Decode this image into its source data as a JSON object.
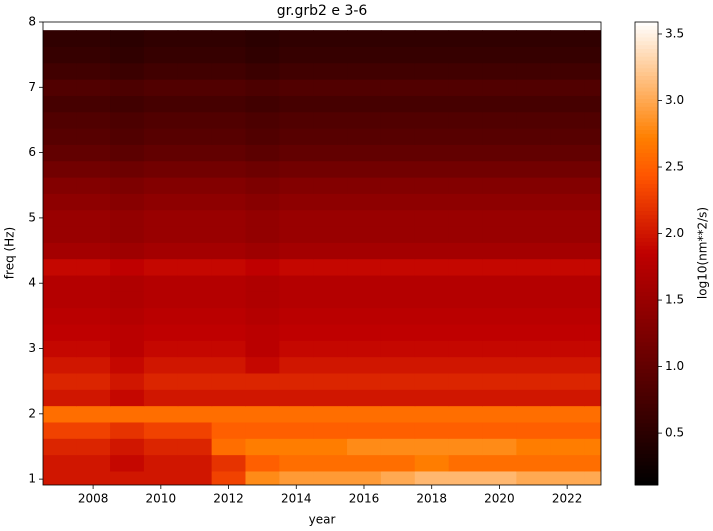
{
  "chart_data": {
    "type": "heatmap",
    "title": "gr.grb2 e 3-6",
    "x_label": "year",
    "y_label": "freq (Hz)",
    "colorbar_label": "log10(nm**2/s)",
    "colormap": "gist_heat",
    "x": [
      2007,
      2008,
      2009,
      2010,
      2011,
      2012,
      2013,
      2014,
      2015,
      2016,
      2017,
      2018,
      2019,
      2020,
      2021,
      2022,
      2023
    ],
    "y": [
      1.0,
      1.25,
      1.5,
      1.75,
      2.0,
      2.25,
      2.5,
      2.75,
      3.0,
      3.25,
      3.5,
      3.75,
      4.0,
      4.25,
      4.5,
      4.75,
      5.0,
      5.25,
      5.5,
      5.75,
      6.0,
      6.25,
      6.5,
      6.75,
      7.0,
      7.25,
      7.5,
      7.75
    ],
    "z": [
      [
        2.0,
        2.0,
        2.0,
        2.0,
        2.0,
        2.3,
        2.8,
        2.9,
        2.9,
        2.9,
        3.0,
        3.1,
        3.1,
        3.1,
        3.0,
        3.0,
        3.0
      ],
      [
        2.0,
        2.0,
        1.9,
        2.0,
        2.0,
        2.2,
        2.5,
        2.6,
        2.6,
        2.6,
        2.6,
        2.7,
        2.6,
        2.6,
        2.6,
        2.6,
        2.6
      ],
      [
        2.1,
        2.1,
        2.0,
        2.1,
        2.1,
        2.6,
        2.7,
        2.7,
        2.7,
        2.8,
        2.8,
        2.8,
        2.8,
        2.8,
        2.7,
        2.7,
        2.7
      ],
      [
        2.3,
        2.3,
        2.2,
        2.3,
        2.3,
        2.5,
        2.5,
        2.5,
        2.5,
        2.5,
        2.5,
        2.5,
        2.5,
        2.5,
        2.5,
        2.5,
        2.5
      ],
      [
        2.6,
        2.6,
        2.6,
        2.6,
        2.6,
        2.6,
        2.6,
        2.6,
        2.6,
        2.6,
        2.6,
        2.6,
        2.6,
        2.6,
        2.6,
        2.6,
        2.6
      ],
      [
        2.0,
        2.0,
        1.9,
        2.0,
        2.0,
        2.0,
        2.0,
        2.0,
        2.0,
        2.0,
        2.0,
        2.0,
        2.0,
        2.0,
        2.0,
        2.0,
        2.0
      ],
      [
        2.1,
        2.1,
        2.0,
        2.1,
        2.1,
        2.1,
        2.1,
        2.1,
        2.1,
        2.1,
        2.1,
        2.1,
        2.1,
        2.1,
        2.1,
        2.1,
        2.1
      ],
      [
        2.0,
        2.0,
        1.9,
        2.0,
        2.0,
        2.0,
        1.9,
        2.0,
        2.0,
        2.0,
        2.0,
        2.0,
        2.0,
        2.0,
        2.0,
        2.0,
        2.0
      ],
      [
        1.9,
        1.9,
        1.8,
        1.9,
        1.9,
        1.9,
        1.8,
        1.9,
        1.9,
        1.9,
        1.9,
        1.9,
        1.9,
        1.9,
        1.9,
        1.9,
        1.9
      ],
      [
        1.85,
        1.85,
        1.8,
        1.85,
        1.85,
        1.85,
        1.8,
        1.85,
        1.85,
        1.85,
        1.85,
        1.85,
        1.85,
        1.85,
        1.85,
        1.85,
        1.85
      ],
      [
        1.8,
        1.8,
        1.75,
        1.8,
        1.8,
        1.8,
        1.75,
        1.8,
        1.8,
        1.8,
        1.8,
        1.8,
        1.8,
        1.8,
        1.8,
        1.8,
        1.8
      ],
      [
        1.75,
        1.75,
        1.7,
        1.75,
        1.75,
        1.75,
        1.7,
        1.75,
        1.75,
        1.75,
        1.75,
        1.75,
        1.75,
        1.75,
        1.75,
        1.75,
        1.75
      ],
      [
        1.75,
        1.75,
        1.7,
        1.75,
        1.75,
        1.75,
        1.7,
        1.75,
        1.75,
        1.75,
        1.75,
        1.75,
        1.75,
        1.75,
        1.75,
        1.75,
        1.75
      ],
      [
        1.9,
        1.9,
        1.85,
        1.9,
        1.9,
        1.9,
        1.85,
        1.9,
        1.9,
        1.9,
        1.9,
        1.9,
        1.9,
        1.9,
        1.9,
        1.9,
        1.9
      ],
      [
        1.6,
        1.6,
        1.55,
        1.6,
        1.6,
        1.6,
        1.55,
        1.6,
        1.6,
        1.6,
        1.6,
        1.6,
        1.6,
        1.6,
        1.6,
        1.6,
        1.6
      ],
      [
        1.5,
        1.5,
        1.45,
        1.5,
        1.5,
        1.5,
        1.45,
        1.5,
        1.5,
        1.5,
        1.5,
        1.5,
        1.5,
        1.5,
        1.5,
        1.5,
        1.5
      ],
      [
        1.5,
        1.5,
        1.45,
        1.5,
        1.5,
        1.5,
        1.45,
        1.5,
        1.5,
        1.5,
        1.5,
        1.5,
        1.5,
        1.5,
        1.5,
        1.5,
        1.5
      ],
      [
        1.4,
        1.4,
        1.35,
        1.4,
        1.4,
        1.4,
        1.35,
        1.4,
        1.4,
        1.4,
        1.4,
        1.4,
        1.4,
        1.4,
        1.4,
        1.4,
        1.4
      ],
      [
        1.3,
        1.3,
        1.25,
        1.3,
        1.3,
        1.3,
        1.25,
        1.3,
        1.3,
        1.3,
        1.3,
        1.3,
        1.3,
        1.3,
        1.3,
        1.3,
        1.3
      ],
      [
        1.15,
        1.15,
        1.1,
        1.15,
        1.15,
        1.15,
        1.1,
        1.15,
        1.15,
        1.15,
        1.15,
        1.15,
        1.15,
        1.15,
        1.15,
        1.15,
        1.15
      ],
      [
        1.0,
        1.0,
        0.95,
        1.0,
        1.0,
        1.0,
        0.95,
        1.0,
        1.0,
        1.0,
        1.0,
        1.0,
        1.0,
        1.0,
        1.0,
        1.0,
        1.0
      ],
      [
        0.9,
        0.9,
        0.85,
        0.9,
        0.9,
        0.9,
        0.85,
        0.9,
        0.9,
        0.9,
        0.9,
        0.9,
        0.9,
        0.9,
        0.9,
        0.9,
        0.9
      ],
      [
        0.85,
        0.85,
        0.8,
        0.85,
        0.85,
        0.85,
        0.8,
        0.85,
        0.85,
        0.85,
        0.85,
        0.85,
        0.85,
        0.85,
        0.85,
        0.85,
        0.85
      ],
      [
        0.75,
        0.75,
        0.7,
        0.75,
        0.75,
        0.75,
        0.7,
        0.75,
        0.75,
        0.75,
        0.75,
        0.75,
        0.75,
        0.75,
        0.75,
        0.75,
        0.75
      ],
      [
        0.85,
        0.85,
        0.8,
        0.85,
        0.85,
        0.85,
        0.8,
        0.85,
        0.85,
        0.85,
        0.85,
        0.85,
        0.85,
        0.85,
        0.85,
        0.85,
        0.85
      ],
      [
        0.7,
        0.7,
        0.65,
        0.7,
        0.7,
        0.7,
        0.65,
        0.7,
        0.7,
        0.7,
        0.7,
        0.7,
        0.7,
        0.7,
        0.7,
        0.7,
        0.7
      ],
      [
        0.6,
        0.6,
        0.55,
        0.6,
        0.6,
        0.6,
        0.55,
        0.6,
        0.6,
        0.6,
        0.6,
        0.6,
        0.6,
        0.6,
        0.6,
        0.6,
        0.6
      ],
      [
        0.55,
        0.55,
        0.5,
        0.55,
        0.55,
        0.55,
        0.5,
        0.55,
        0.55,
        0.55,
        0.55,
        0.55,
        0.55,
        0.55,
        0.55,
        0.55,
        0.55
      ]
    ],
    "xlim": [
      2006.52,
      2023.0
    ],
    "ylim": [
      0.91,
      8
    ],
    "xticks": [
      2008,
      2010,
      2012,
      2014,
      2016,
      2018,
      2020,
      2022
    ],
    "yticks": [
      1,
      2,
      3,
      4,
      5,
      6,
      7,
      8
    ],
    "clim": [
      0.11,
      3.59
    ],
    "cticks": [
      0.5,
      1.0,
      1.5,
      2.0,
      2.5,
      3.0,
      3.5
    ]
  }
}
